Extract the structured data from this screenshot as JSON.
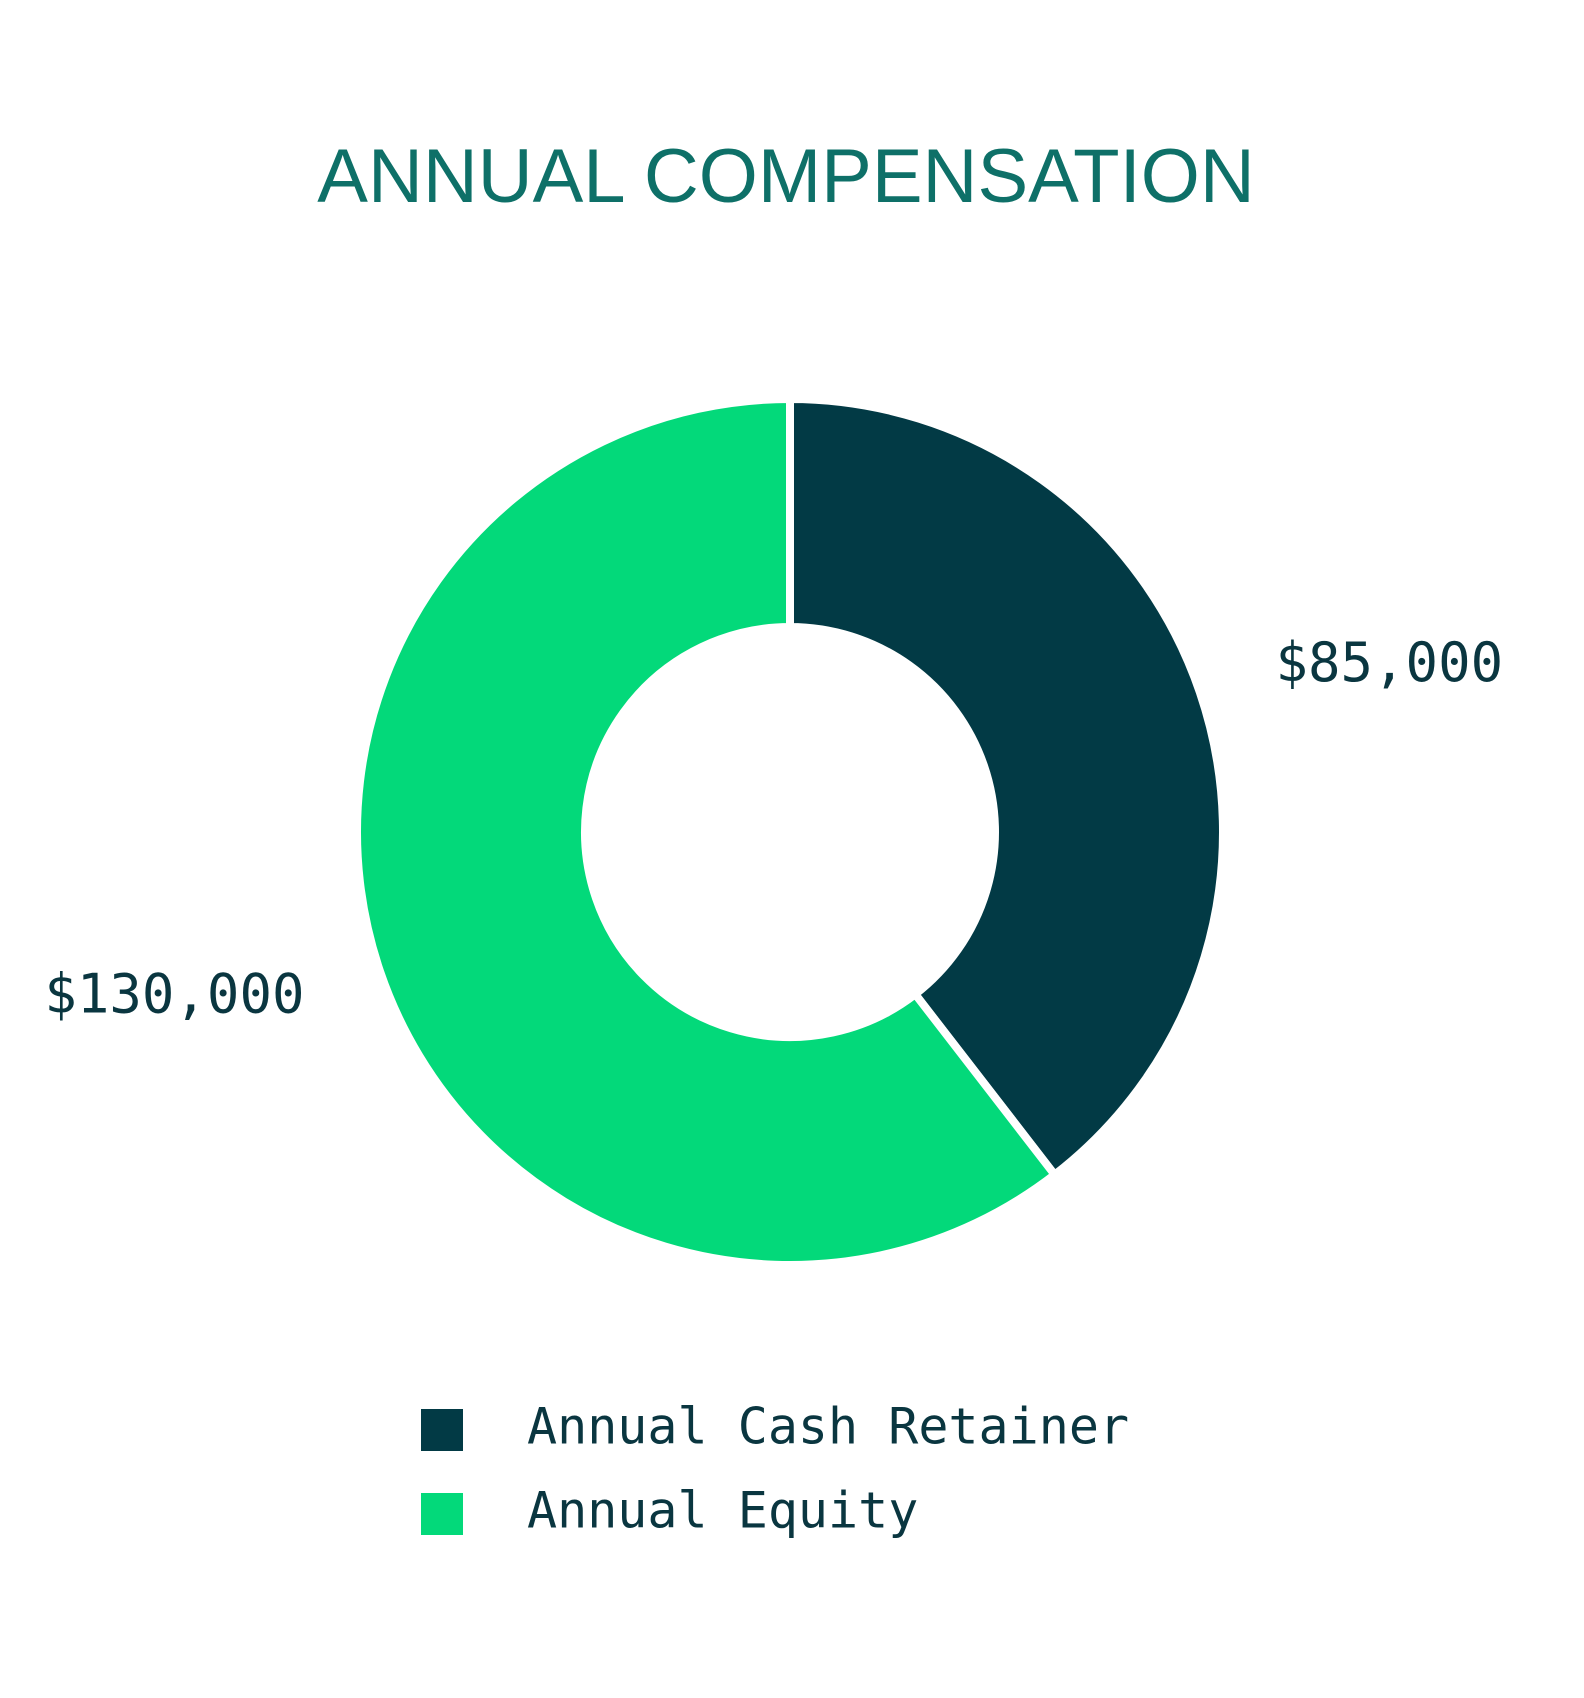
{
  "chart_data": {
    "type": "donut",
    "title": "ANNUAL COMPENSATION",
    "categories": [
      "Annual Cash Retainer",
      "Annual Equity"
    ],
    "values": [
      85000,
      130000
    ],
    "value_labels": [
      "$85,000",
      "$130,000"
    ],
    "colors": [
      "#023a45",
      "#03d97a"
    ]
  }
}
